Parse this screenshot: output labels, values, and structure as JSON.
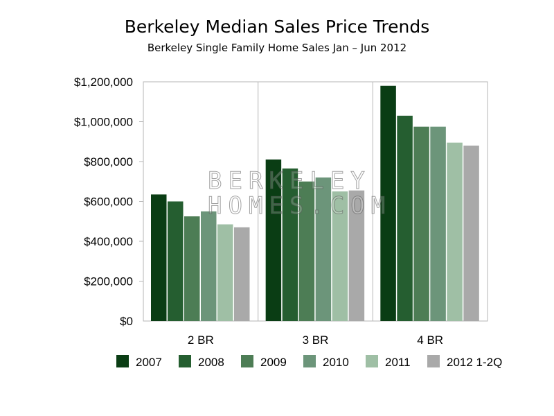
{
  "chart_data": {
    "type": "bar",
    "title": "Berkeley Median Sales Price Trends",
    "subtitle": "Berkeley Single Family Home Sales Jan – Jun 2012",
    "xlabel": "",
    "ylabel": "",
    "categories": [
      "2 BR",
      "3 BR",
      "4 BR"
    ],
    "ylim": [
      0,
      1200000
    ],
    "yticks": [
      {
        "value": 0,
        "label": "$0"
      },
      {
        "value": 200000,
        "label": "$200,000"
      },
      {
        "value": 400000,
        "label": "$400,000"
      },
      {
        "value": 600000,
        "label": "$600,000"
      },
      {
        "value": 800000,
        "label": "$800,000"
      },
      {
        "value": 1000000,
        "label": "$1,000,000"
      },
      {
        "value": 1200000,
        "label": "$1,200,000"
      }
    ],
    "grid": "vertical category separators",
    "legend_position": "bottom",
    "series": [
      {
        "name": "2007",
        "color": "#0a3d14",
        "values": [
          635000,
          810000,
          1180000
        ]
      },
      {
        "name": "2008",
        "color": "#255e30",
        "values": [
          600000,
          765000,
          1030000
        ]
      },
      {
        "name": "2009",
        "color": "#4d7d55",
        "values": [
          525000,
          700000,
          975000
        ]
      },
      {
        "name": "2010",
        "color": "#6c957a",
        "values": [
          550000,
          720000,
          975000
        ]
      },
      {
        "name": "2011",
        "color": "#9fbfa5",
        "values": [
          485000,
          650000,
          895000
        ]
      },
      {
        "name": "2012 1-2Q",
        "color": "#a9a9a9",
        "values": [
          470000,
          655000,
          880000
        ]
      }
    ],
    "watermark": [
      "BERKELEY",
      "HOMES.COM"
    ]
  }
}
